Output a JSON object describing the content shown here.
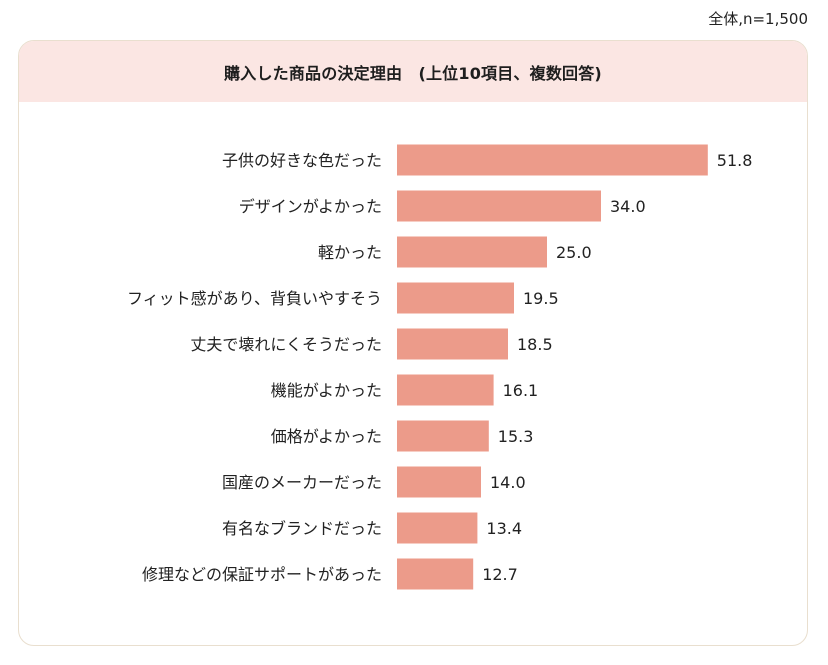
{
  "sample_note": "全体,n=1,500",
  "chart_data": {
    "type": "bar",
    "orientation": "horizontal",
    "title": "購入した商品の決定理由　(上位10項目、複数回答)",
    "categories": [
      "子供の好きな色だった",
      "デザインがよかった",
      "軽かった",
      "フィット感があり、背負いやすそう",
      "丈夫で壊れにくそうだった",
      "機能がよかった",
      "価格がよかった",
      "国産のメーカーだった",
      "有名なブランドだった",
      "修理などの保証サポートがあった"
    ],
    "values": [
      51.8,
      34.0,
      25.0,
      19.5,
      18.5,
      16.1,
      15.3,
      14.0,
      13.4,
      12.7
    ],
    "value_labels": [
      "51.8",
      "34.0",
      "25.0",
      "19.5",
      "18.5",
      "16.1",
      "15.3",
      "14.0",
      "13.4",
      "12.7"
    ],
    "bar_color": "#ec9b8a",
    "header_color": "#fbe6e3",
    "xlim": [
      0,
      60
    ],
    "grid": false,
    "legend": "none"
  }
}
